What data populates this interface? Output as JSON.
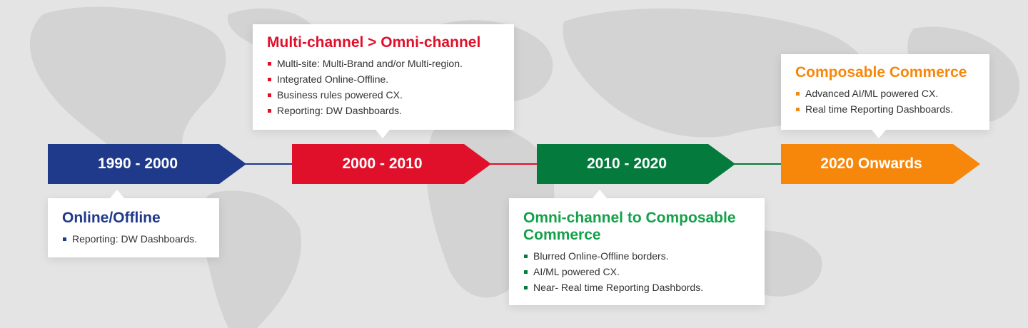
{
  "timeline": {
    "stages": [
      {
        "period": "1990 - 2000",
        "color": "#1f3a8a",
        "card_position": "below",
        "title": "Online/Offline",
        "items": [
          "Reporting: DW Dashboards."
        ]
      },
      {
        "period": "2000 - 2010",
        "color": "#e0102a",
        "card_position": "above",
        "title": "Multi-channel > Omni-channel",
        "items": [
          "Multi-site: Multi-Brand and/or Multi-region.",
          "Integrated Online-Offline.",
          "Business rules powered CX.",
          "Reporting: DW Dashboards."
        ]
      },
      {
        "period": "2010 - 2020",
        "color": "#047a3c",
        "card_position": "below",
        "title": "Omni-channel to Composable Commerce",
        "items": [
          "Blurred Online-Offline borders.",
          "AI/ML powered CX.",
          "Near- Real time Reporting Dashbords."
        ]
      },
      {
        "period": "2020 Onwards",
        "color": "#f7870a",
        "card_position": "above",
        "title": "Composable Commerce",
        "items": [
          "Advanced AI/ML powered CX.",
          "Real time Reporting Dashboards."
        ]
      }
    ]
  },
  "colors": {
    "background": "#e4e4e4",
    "map": "#d2d2d2",
    "card": "#ffffff",
    "text": "#333333"
  }
}
